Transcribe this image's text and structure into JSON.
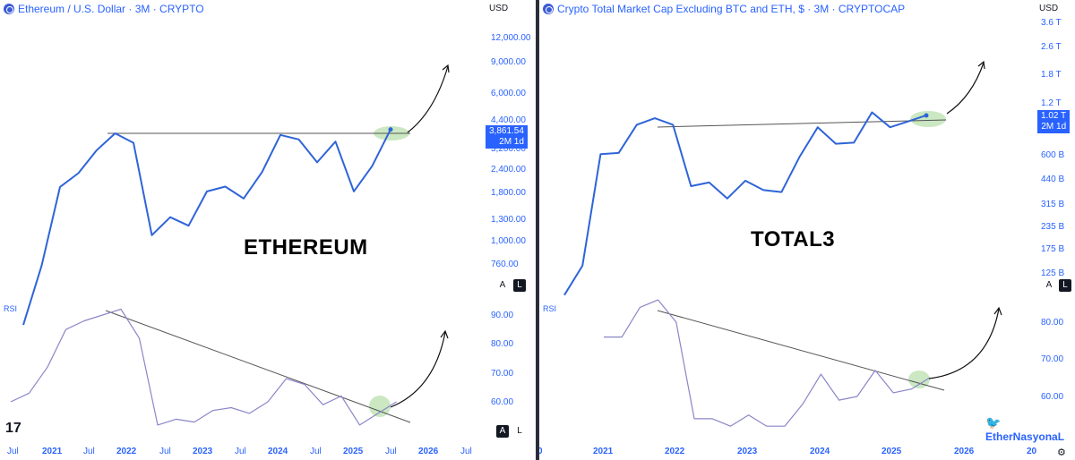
{
  "left": {
    "title": "Ethereum / U.S. Dollar · 3M · CRYPTO",
    "currency": "USD",
    "price_axis": [
      "12,000.00",
      "9,000.00",
      "6,000.00",
      "4,400.00",
      "3,200.00",
      "2,400.00",
      "1,800.00",
      "1,300.00",
      "1,000.00",
      "760.00"
    ],
    "last_price": "3,861.54",
    "countdown": "2M 1d",
    "big_label": "ETHEREUM",
    "rsi_title": "RSI",
    "rsi_axis": [
      "90.00",
      "80.00",
      "70.00",
      "60.00"
    ],
    "time_axis": [
      "Jul",
      "2021",
      "Jul",
      "2022",
      "Jul",
      "2023",
      "Jul",
      "2024",
      "Jul",
      "2025",
      "Jul",
      "2026",
      "Jul"
    ],
    "scale_a": "A",
    "scale_l": "L",
    "logo": "17"
  },
  "right": {
    "title": "Crypto Total Market Cap Excluding BTC and ETH, $ · 3M · CRYPTOCAP",
    "currency": "USD",
    "price_axis": [
      "3.6 T",
      "2.6 T",
      "1.8 T",
      "1.2 T",
      "600 B",
      "440 B",
      "315 B",
      "235 B",
      "175 B",
      "125 B"
    ],
    "last_price": "1.02 T",
    "countdown": "2M 1d",
    "big_label": "TOTAL3",
    "rsi_title": "RSI",
    "rsi_axis": [
      "80.00",
      "70.00",
      "60.00"
    ],
    "time_axis": [
      "0",
      "2021",
      "2022",
      "2023",
      "2024",
      "2025",
      "2026",
      "20"
    ],
    "scale_a": "A",
    "scale_l": "L",
    "watermark": "EtherNasyonaL"
  },
  "colors": {
    "price_line": "#2f64d8",
    "rsi_line": "#8b86c8",
    "trendline": "#555555",
    "highlight": "#a8d89a",
    "accent": "#2962ff"
  },
  "chart_data": [
    {
      "type": "line",
      "title": "Ethereum / U.S. Dollar · 3M · CRYPTO",
      "xlabel": "",
      "ylabel": "",
      "yscale": "log",
      "x": [
        "2020-Q3",
        "2020-Q4",
        "2021-Q1",
        "2021-Q2",
        "2021-Q3",
        "2021-Q4",
        "2022-Q1",
        "2022-Q2",
        "2022-Q3",
        "2022-Q4",
        "2023-Q1",
        "2023-Q2",
        "2023-Q3",
        "2023-Q4",
        "2024-Q1",
        "2024-Q2",
        "2024-Q3",
        "2024-Q4",
        "2025-Q1",
        "2025-Q2",
        "2025-Q3"
      ],
      "series": [
        {
          "values": [
            360,
            740,
            1920,
            2270,
            3000,
            3680,
            3280,
            1070,
            1330,
            1200,
            1820,
            1930,
            1670,
            2300,
            3610,
            3420,
            2590,
            3330,
            1820,
            2480,
            3860
          ]
        }
      ],
      "resistance_line": 3680,
      "last_value": 3861.54
    },
    {
      "type": "line",
      "title": "RSI (ETH)",
      "xlabel": "",
      "ylabel": "",
      "x": [
        "2020-Q2",
        "2020-Q3",
        "2020-Q4",
        "2021-Q1",
        "2021-Q2",
        "2021-Q3",
        "2021-Q4",
        "2022-Q1",
        "2022-Q2",
        "2022-Q3",
        "2022-Q4",
        "2023-Q1",
        "2023-Q2",
        "2023-Q3",
        "2023-Q4",
        "2024-Q1",
        "2024-Q2",
        "2024-Q3",
        "2024-Q4",
        "2025-Q1",
        "2025-Q2",
        "2025-Q3"
      ],
      "series": [
        {
          "values": [
            60,
            63,
            72,
            85,
            88,
            90,
            92,
            82,
            52,
            54,
            53,
            57,
            58,
            56,
            60,
            68,
            66,
            59,
            62,
            52,
            56,
            60
          ]
        }
      ],
      "ylim": [
        50,
        95
      ]
    },
    {
      "type": "line",
      "title": "Crypto Total Market Cap Excluding BTC and ETH, $ · 3M · CRYPTOCAP",
      "xlabel": "",
      "ylabel": "",
      "yscale": "log",
      "x": [
        "2020-Q3",
        "2020-Q4",
        "2021-Q1",
        "2021-Q2",
        "2021-Q3",
        "2021-Q4",
        "2022-Q1",
        "2022-Q2",
        "2022-Q3",
        "2022-Q4",
        "2023-Q1",
        "2023-Q2",
        "2023-Q3",
        "2023-Q4",
        "2024-Q1",
        "2024-Q2",
        "2024-Q3",
        "2024-Q4",
        "2025-Q1",
        "2025-Q2",
        "2025-Q3"
      ],
      "series": [
        {
          "values": [
            95,
            140,
            610,
            620,
            900,
            980,
            900,
            400,
            420,
            340,
            430,
            380,
            370,
            590,
            870,
            700,
            710,
            1060,
            870,
            940,
            1020
          ]
        }
      ],
      "resistance_line": 980,
      "last_value": 1020,
      "unit": "B"
    },
    {
      "type": "line",
      "title": "RSI (TOTAL3)",
      "xlabel": "",
      "ylabel": "",
      "x": [
        "2021-Q1",
        "2021-Q2",
        "2021-Q3",
        "2021-Q4",
        "2022-Q1",
        "2022-Q2",
        "2022-Q3",
        "2022-Q4",
        "2023-Q1",
        "2023-Q2",
        "2023-Q3",
        "2023-Q4",
        "2024-Q1",
        "2024-Q2",
        "2024-Q3",
        "2024-Q4",
        "2025-Q1",
        "2025-Q2",
        "2025-Q3"
      ],
      "series": [
        {
          "values": [
            76,
            76,
            84,
            86,
            80,
            54,
            54,
            52,
            55,
            52,
            52,
            58,
            66,
            59,
            60,
            67,
            61,
            62,
            65
          ]
        }
      ],
      "ylim": [
        55,
        90
      ]
    }
  ]
}
